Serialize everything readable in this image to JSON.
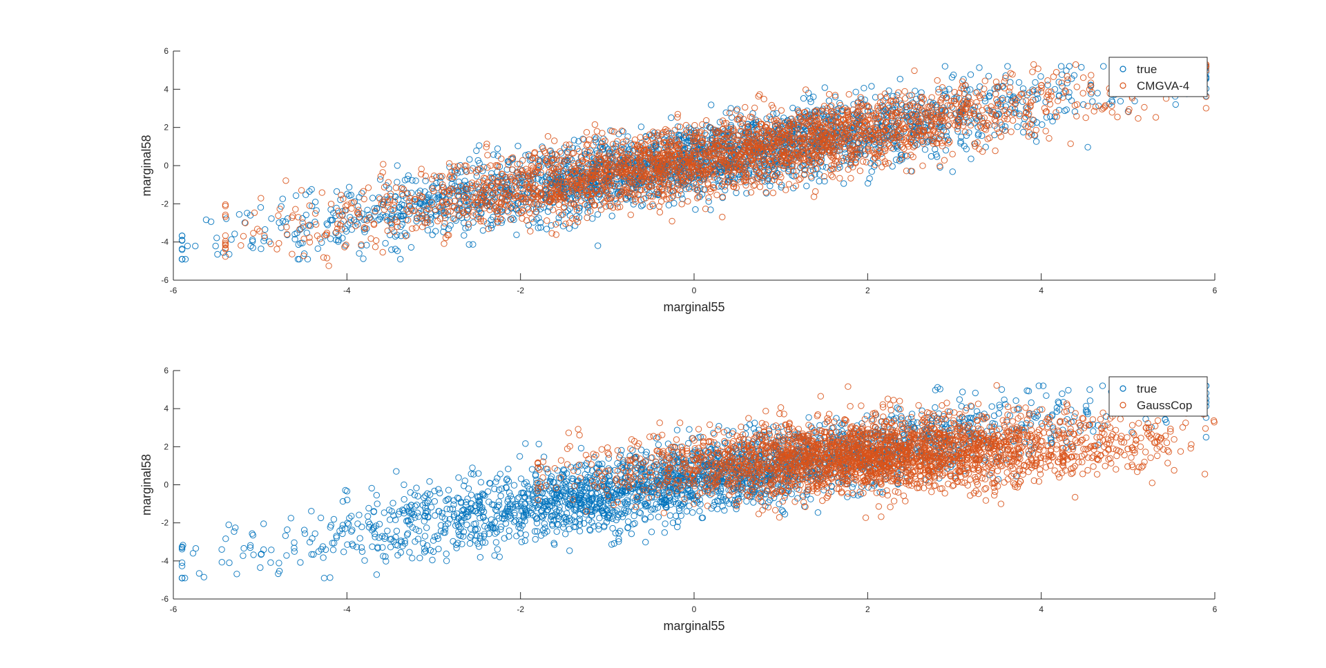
{
  "colors": {
    "true": "#0072BD",
    "model": "#D95319",
    "axis": "#262626",
    "background": "#ffffff"
  },
  "chart_data": [
    {
      "type": "scatter",
      "title": "",
      "xlabel": "marginal55",
      "ylabel": "marginal58",
      "xlim": [
        -6,
        6
      ],
      "ylim": [
        -6,
        6
      ],
      "xticks": [
        "-6",
        "-4",
        "-2",
        "0",
        "2",
        "4",
        "6"
      ],
      "yticks": [
        "-6",
        "-4",
        "-2",
        "0",
        "2",
        "4",
        "6"
      ],
      "grid": false,
      "legend_position": "top-right",
      "series": [
        {
          "name": "true",
          "color": "#0072BD",
          "marker": "open-circle",
          "distribution": {
            "x_range": [
              -5.9,
              5.9
            ],
            "y_range": [
              -4.9,
              5.2
            ],
            "slope": 0.75,
            "intercept": 0.3,
            "points_approx": 20000
          }
        },
        {
          "name": "CMGVA-4",
          "color": "#D95319",
          "marker": "open-circle",
          "distribution": {
            "x_range": [
              -5.4,
              5.9
            ],
            "y_range": [
              -5.6,
              5.3
            ],
            "slope": 0.75,
            "intercept": 0.3,
            "points_approx": 20000
          }
        }
      ]
    },
    {
      "type": "scatter",
      "title": "",
      "xlabel": "marginal55",
      "ylabel": "marginal58",
      "xlim": [
        -6,
        6
      ],
      "ylim": [
        -6,
        6
      ],
      "xticks": [
        "-6",
        "-4",
        "-2",
        "0",
        "2",
        "4",
        "6"
      ],
      "yticks": [
        "-6",
        "-4",
        "-2",
        "0",
        "2",
        "4",
        "6"
      ],
      "grid": false,
      "legend_position": "top-right",
      "series": [
        {
          "name": "true",
          "color": "#0072BD",
          "marker": "open-circle",
          "distribution": {
            "x_range": [
              -5.9,
              5.9
            ],
            "y_range": [
              -4.9,
              5.2
            ],
            "slope": 0.75,
            "intercept": 0.3,
            "points_approx": 20000
          }
        },
        {
          "name": "GaussCop",
          "color": "#D95319",
          "marker": "open-circle",
          "distribution": {
            "x_range": [
              -1.8,
              6.0
            ],
            "y_range": [
              -2.3,
              5.7
            ],
            "slope": 0.25,
            "intercept": 1.0,
            "points_approx": 20000
          }
        }
      ]
    }
  ]
}
